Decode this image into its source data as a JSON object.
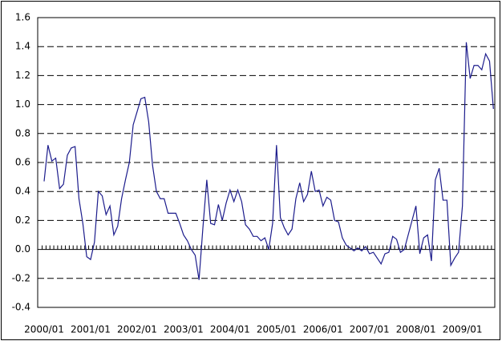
{
  "chart_data": {
    "type": "line",
    "categories": [
      "2000/01",
      null,
      null,
      null,
      null,
      null,
      null,
      null,
      null,
      null,
      null,
      null,
      "2001/01",
      null,
      null,
      null,
      null,
      null,
      null,
      null,
      null,
      null,
      null,
      null,
      "2002/01",
      null,
      null,
      null,
      null,
      null,
      null,
      null,
      null,
      null,
      null,
      null,
      "2003/01",
      null,
      null,
      null,
      null,
      null,
      null,
      null,
      null,
      null,
      null,
      null,
      "2004/01",
      null,
      null,
      null,
      null,
      null,
      null,
      null,
      null,
      null,
      null,
      null,
      "2005/01",
      null,
      null,
      null,
      null,
      null,
      null,
      null,
      null,
      null,
      null,
      null,
      "2006/01",
      null,
      null,
      null,
      null,
      null,
      null,
      null,
      null,
      null,
      null,
      null,
      "2007/01",
      null,
      null,
      null,
      null,
      null,
      null,
      null,
      null,
      null,
      null,
      null,
      "2008/01",
      null,
      null,
      null,
      null,
      null,
      null,
      null,
      null,
      null,
      null,
      null,
      "2009/01",
      null,
      null,
      null,
      null,
      null,
      null,
      null,
      null
    ],
    "values": [
      0.47,
      0.72,
      0.61,
      0.63,
      0.42,
      0.45,
      0.65,
      0.7,
      0.71,
      0.35,
      0.18,
      -0.05,
      -0.07,
      0.05,
      0.4,
      0.37,
      0.24,
      0.3,
      0.1,
      0.16,
      0.35,
      0.48,
      0.6,
      0.86,
      0.95,
      1.04,
      1.05,
      0.88,
      0.58,
      0.4,
      0.35,
      0.35,
      0.25,
      0.25,
      0.25,
      0.18,
      0.1,
      0.06,
      0.0,
      -0.04,
      -0.21,
      0.15,
      0.48,
      0.18,
      0.17,
      0.31,
      0.2,
      0.32,
      0.41,
      0.33,
      0.41,
      0.33,
      0.17,
      0.14,
      0.09,
      0.09,
      0.06,
      0.08,
      0.0,
      0.18,
      0.72,
      0.22,
      0.15,
      0.1,
      0.14,
      0.35,
      0.46,
      0.33,
      0.38,
      0.54,
      0.4,
      0.41,
      0.3,
      0.36,
      0.34,
      0.2,
      0.19,
      0.08,
      0.03,
      0.01,
      -0.01,
      0.01,
      -0.01,
      0.02,
      -0.03,
      -0.02,
      -0.06,
      -0.1,
      -0.03,
      -0.02,
      0.09,
      0.07,
      -0.02,
      0.0,
      0.1,
      0.2,
      0.3,
      -0.03,
      0.08,
      0.1,
      -0.08,
      0.48,
      0.56,
      0.34,
      0.34,
      -0.11,
      -0.06,
      -0.02,
      0.3,
      1.43,
      1.18,
      1.27,
      1.27,
      1.24,
      1.35,
      1.3,
      0.97
    ],
    "color": "#1c1c8c",
    "ylim": [
      -0.4,
      1.6
    ],
    "yticks": [
      -0.4,
      -0.2,
      {
        "value": 0,
        "label": "0.0"
      },
      0.2,
      0.4,
      0.6,
      0.8,
      {
        "value": 1,
        "label": "1.0"
      },
      1.2,
      1.4,
      1.6
    ],
    "grid": true
  }
}
